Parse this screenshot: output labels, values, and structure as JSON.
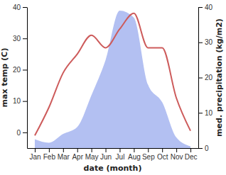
{
  "chart_data": {
    "type": "line",
    "categories": [
      "Jan",
      "Feb",
      "Mar",
      "Apr",
      "May",
      "Jun",
      "Jul",
      "Aug",
      "Sep",
      "Oct",
      "Nov",
      "Dec"
    ],
    "x_label": "date (month)",
    "y_label": "max temp (C)",
    "y2_label": "med. precipitation (kg/m2)",
    "ylim": [
      -5,
      40
    ],
    "yticks": [
      0,
      10,
      20,
      30,
      40
    ],
    "y2lim": [
      0,
      40
    ],
    "y2ticks": [
      0,
      10,
      20,
      30,
      40
    ],
    "series": [
      {
        "name": "med. precipitation",
        "type": "area",
        "axis": "y2",
        "color": "#b3c0f2",
        "values": [
          2.5,
          1.5,
          4,
          6,
          15,
          25,
          39,
          37,
          18,
          13,
          3,
          0.5
        ]
      },
      {
        "name": "max temp",
        "type": "line",
        "axis": "y",
        "color": "#cd5b5b",
        "values": [
          -1,
          8,
          19,
          25,
          31,
          27,
          33,
          38,
          27,
          27,
          11,
          0.5
        ]
      }
    ]
  }
}
